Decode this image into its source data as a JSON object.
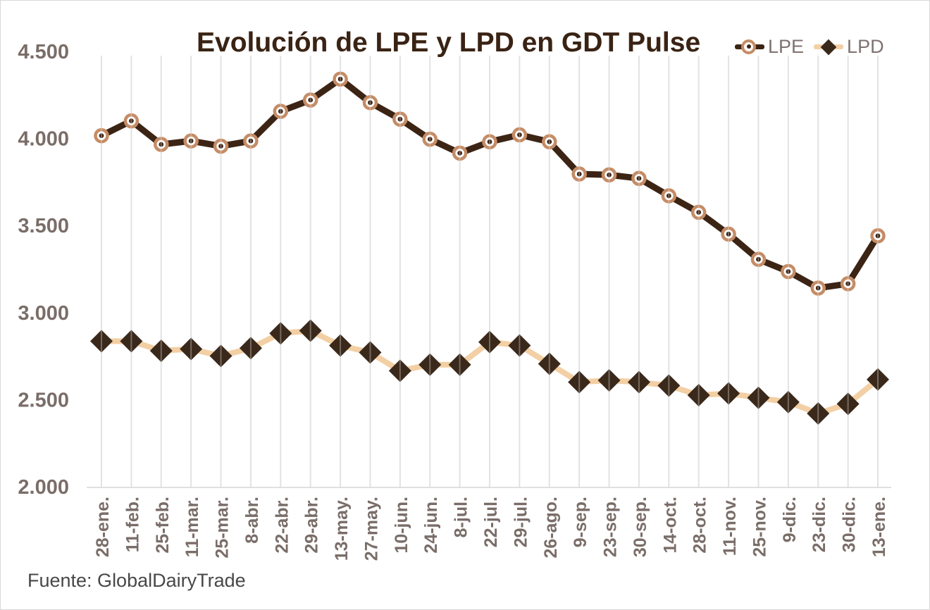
{
  "window": {
    "background": "#ffffff",
    "border_color": "#d9d9d9"
  },
  "header": {
    "title": "Evolución de LPE y LPD en GDT Pulse"
  },
  "legend": {
    "items": [
      {
        "label": "LPE",
        "marker": "open-circle"
      },
      {
        "label": "LPD",
        "marker": "diamond"
      }
    ]
  },
  "footer": {
    "source": "Fuente: GlobalDairyTrade"
  },
  "chart_data": {
    "type": "line",
    "title": "Evolución de LPE y LPD en GDT Pulse",
    "xlabel": "",
    "ylabel": "",
    "ylim": [
      2000,
      4500
    ],
    "grid": "vertical-only",
    "legend_position": "top-right",
    "source_note": "Fuente: GlobalDairyTrade",
    "categories": [
      "28-ene.",
      "11-feb.",
      "25-feb.",
      "11-mar.",
      "25-mar.",
      "8-abr.",
      "22-abr.",
      "29-abr.",
      "13-may.",
      "27-may.",
      "10-jun.",
      "24-jun.",
      "8-jul.",
      "22-jul.",
      "29-jul.",
      "26-ago.",
      "9-sep.",
      "23-sep.",
      "30-sep.",
      "14-oct.",
      "28-oct.",
      "11-nov.",
      "25-nov.",
      "9-dic.",
      "23-dic.",
      "30-dic.",
      "13-ene."
    ],
    "yticks": [
      {
        "value": 4500,
        "label": "4.500"
      },
      {
        "value": 4000,
        "label": "4.000"
      },
      {
        "value": 3500,
        "label": "3.500"
      },
      {
        "value": 3000,
        "label": "3.000"
      },
      {
        "value": 2500,
        "label": "2.500"
      },
      {
        "value": 2000,
        "label": "2.000"
      }
    ],
    "series": [
      {
        "name": "LPE",
        "marker": "open-circle",
        "line_color": "#3C2415",
        "marker_color": "#C58C66",
        "values": [
          4020,
          4105,
          3970,
          3990,
          3960,
          3990,
          4160,
          4225,
          4345,
          4210,
          4115,
          4000,
          3920,
          3985,
          4025,
          3985,
          3800,
          3795,
          3775,
          3675,
          3580,
          3455,
          3310,
          3240,
          3145,
          3170,
          3445
        ]
      },
      {
        "name": "LPD",
        "marker": "diamond",
        "line_color": "#F2CFA4",
        "marker_color": "#3A291B",
        "values": [
          2840,
          2840,
          2785,
          2795,
          2755,
          2800,
          2885,
          2900,
          2815,
          2775,
          2670,
          2705,
          2705,
          2835,
          2815,
          2710,
          2605,
          2615,
          2605,
          2585,
          2530,
          2540,
          2515,
          2490,
          2425,
          2480,
          2620
        ]
      }
    ],
    "colors": {
      "gridline": "#E3E3E3",
      "axis_line": "#D6D6D6",
      "tick_label": "#7A6D68",
      "title": "#3A2314",
      "legend_label": "#7E7270",
      "source_label": "#484848"
    }
  }
}
